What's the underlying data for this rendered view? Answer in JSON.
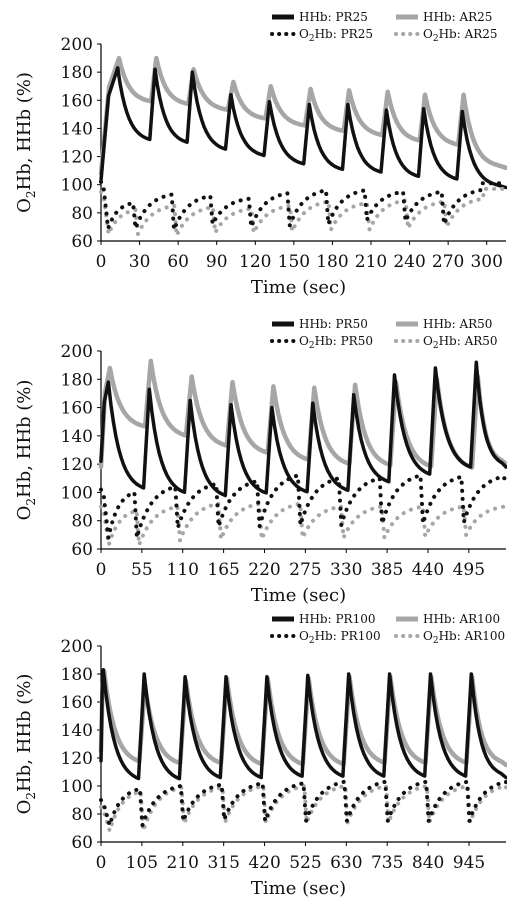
{
  "colors": {
    "pr": "#111111",
    "ar": "#a6a6a6"
  },
  "chart_data": [
    {
      "type": "line",
      "title": "",
      "xlabel": "Time (sec)",
      "ylabel": "O2Hb, HHb (%)",
      "ylabel_parts": [
        "O",
        "2",
        "Hb, HHb (%)"
      ],
      "xticks": [
        "0",
        "30",
        "60",
        "90",
        "120",
        "150",
        "180",
        "210",
        "240",
        "270",
        "300"
      ],
      "yticks": [
        "60",
        "80",
        "100",
        "120",
        "140",
        "160",
        "180",
        "200"
      ],
      "xlim": [
        0,
        315
      ],
      "ylim": [
        60,
        200
      ],
      "period": 30,
      "legend": [
        "HHb: PR25",
        "HHb: AR25",
        "O2Hb: PR25",
        "O2Hb: AR25"
      ],
      "series": [
        {
          "name": "HHb: PR25",
          "style": "solid",
          "color": "pr",
          "peak_x": [
            13,
            42,
            71,
            101,
            131,
            162,
            192,
            222,
            251,
            281
          ],
          "peaks": [
            183,
            182,
            180,
            164,
            159,
            157,
            157,
            153,
            154,
            152
          ],
          "troughs": [
            130,
            128,
            123,
            119,
            113,
            109,
            107,
            104,
            102,
            100
          ],
          "start": 103,
          "end": 98
        },
        {
          "name": "HHb: AR25",
          "style": "solid",
          "color": "ar",
          "peak_x": [
            14,
            43,
            72,
            103,
            132,
            163,
            193,
            223,
            252,
            282
          ],
          "peaks": [
            190,
            190,
            182,
            173,
            170,
            168,
            167,
            166,
            164,
            164
          ],
          "troughs": [
            158,
            156,
            152,
            146,
            141,
            137,
            134,
            130,
            127,
            124
          ],
          "start": 108,
          "end": 112
        },
        {
          "name": "O2Hb: PR25",
          "style": "dotted",
          "color": "pr",
          "peak_x": [
            25,
            55,
            85,
            115,
            145,
            175,
            205,
            235,
            265,
            295
          ],
          "peaks": [
            87,
            93,
            92,
            90,
            94,
            96,
            96,
            95,
            95,
            96
          ],
          "troughs": [
            69,
            68,
            72,
            70,
            71,
            72,
            75,
            74,
            72,
            76
          ],
          "start": 102,
          "end": 101
        },
        {
          "name": "O2Hb: AR25",
          "style": "dotted",
          "color": "ar",
          "peak_x": [
            27,
            57,
            87,
            117,
            147,
            177,
            207,
            237,
            267,
            297
          ],
          "peaks": [
            82,
            85,
            84,
            83,
            85,
            88,
            87,
            89,
            88,
            90
          ],
          "troughs": [
            65,
            64,
            66,
            66,
            67,
            68,
            68,
            69,
            70,
            71
          ],
          "start": 95,
          "end": 97
        }
      ]
    },
    {
      "type": "line",
      "title": "",
      "xlabel": "Time (sec)",
      "ylabel": "O2Hb, HHb (%)",
      "ylabel_parts": [
        "O",
        "2",
        "Hb, HHb (%)"
      ],
      "xticks": [
        "0",
        "55",
        "110",
        "165",
        "220",
        "275",
        "330",
        "385",
        "440",
        "495"
      ],
      "yticks": [
        "60",
        "80",
        "100",
        "120",
        "140",
        "160",
        "180",
        "200"
      ],
      "xlim": [
        0,
        545
      ],
      "ylim": [
        60,
        200
      ],
      "period": 55,
      "legend": [
        "HHb: PR50",
        "HHb: AR50",
        "O2Hb: PR50",
        "O2Hb: AR50"
      ],
      "series": [
        {
          "name": "HHb: PR50",
          "style": "solid",
          "color": "pr",
          "peak_x": [
            10,
            65,
            120,
            175,
            230,
            285,
            340,
            395,
            450,
            505
          ],
          "peaks": [
            178,
            173,
            165,
            162,
            160,
            163,
            169,
            183,
            188,
            192
          ],
          "troughs": [
            100,
            97,
            95,
            97,
            98,
            99,
            105,
            110,
            115,
            120
          ],
          "start": 122,
          "end": 118
        },
        {
          "name": "HHb: AR50",
          "style": "solid",
          "color": "ar",
          "peak_x": [
            12,
            67,
            122,
            177,
            232,
            287,
            342,
            397,
            452,
            507
          ],
          "peaks": [
            188,
            193,
            182,
            178,
            175,
            174,
            176,
            178,
            180,
            182
          ],
          "troughs": [
            145,
            138,
            131,
            126,
            121,
            118,
            117,
            116,
            115,
            114
          ],
          "start": 118,
          "end": 120
        },
        {
          "name": "O2Hb: PR50",
          "style": "dotted",
          "color": "pr",
          "peak_x": [
            45,
            100,
            155,
            210,
            265,
            320,
            375,
            430,
            485,
            540
          ],
          "peaks": [
            100,
            104,
            106,
            108,
            112,
            110,
            110,
            112,
            111,
            111
          ],
          "troughs": [
            68,
            75,
            76,
            76,
            77,
            77,
            78,
            78,
            79,
            80
          ],
          "start": 102,
          "end": 110
        },
        {
          "name": "O2Hb: AR50",
          "style": "dotted",
          "color": "ar",
          "peak_x": [
            48,
            103,
            158,
            213,
            268,
            323,
            378,
            433,
            488,
            543
          ],
          "peaks": [
            87,
            90,
            92,
            92,
            92,
            90,
            90,
            90,
            90,
            90
          ],
          "troughs": [
            63,
            66,
            67,
            67,
            68,
            68,
            68,
            69,
            70,
            70
          ],
          "start": 90,
          "end": 90
        }
      ]
    },
    {
      "type": "line",
      "title": "",
      "xlabel": "Time (sec)",
      "ylabel": "O2Hb, HHb (%)",
      "ylabel_parts": [
        "O",
        "2",
        "Hb, HHb (%)"
      ],
      "xticks": [
        "0",
        "105",
        "210",
        "315",
        "420",
        "525",
        "630",
        "735",
        "840",
        "945"
      ],
      "yticks": [
        "60",
        "80",
        "100",
        "120",
        "140",
        "160",
        "180",
        "200"
      ],
      "xlim": [
        0,
        1040
      ],
      "ylim": [
        60,
        200
      ],
      "period": 105,
      "legend": [
        "HHb: PR100",
        "HHb: AR100",
        "O2Hb: PR100",
        "O2Hb: AR100"
      ],
      "series": [
        {
          "name": "HHb: PR100",
          "style": "solid",
          "color": "pr",
          "peak_x": [
            6,
            111,
            216,
            321,
            426,
            531,
            636,
            741,
            846,
            951
          ],
          "peaks": [
            183,
            180,
            178,
            178,
            178,
            179,
            180,
            180,
            180,
            180
          ],
          "troughs": [
            102,
            102,
            103,
            103,
            104,
            104,
            104,
            104,
            104,
            104
          ],
          "start": 118,
          "end": 106
        },
        {
          "name": "HHb: AR100",
          "style": "solid",
          "color": "ar",
          "peak_x": [
            8,
            113,
            218,
            323,
            428,
            533,
            638,
            743,
            848,
            953
          ],
          "peaks": [
            182,
            172,
            175,
            177,
            177,
            177,
            178,
            178,
            178,
            178
          ],
          "troughs": [
            115,
            114,
            114,
            113,
            113,
            113,
            114,
            114,
            114,
            114
          ],
          "start": 125,
          "end": 115
        },
        {
          "name": "O2Hb: PR100",
          "style": "dotted",
          "color": "pr",
          "peak_x": [
            100,
            205,
            310,
            415,
            520,
            625,
            730,
            835,
            940,
            1040
          ],
          "peaks": [
            98,
            100,
            101,
            102,
            102,
            103,
            103,
            103,
            103,
            103
          ],
          "troughs": [
            72,
            75,
            76,
            75,
            75,
            75,
            75,
            75,
            75,
            76
          ],
          "start": 90,
          "end": 100
        },
        {
          "name": "O2Hb: AR100",
          "style": "dotted",
          "color": "ar",
          "peak_x": [
            102,
            207,
            312,
            417,
            522,
            627,
            732,
            837,
            942,
            1040
          ],
          "peaks": [
            96,
            99,
            99,
            100,
            100,
            100,
            100,
            100,
            100,
            100
          ],
          "troughs": [
            68,
            73,
            74,
            74,
            74,
            74,
            74,
            74,
            74,
            74
          ],
          "start": 85,
          "end": 98
        }
      ]
    }
  ]
}
